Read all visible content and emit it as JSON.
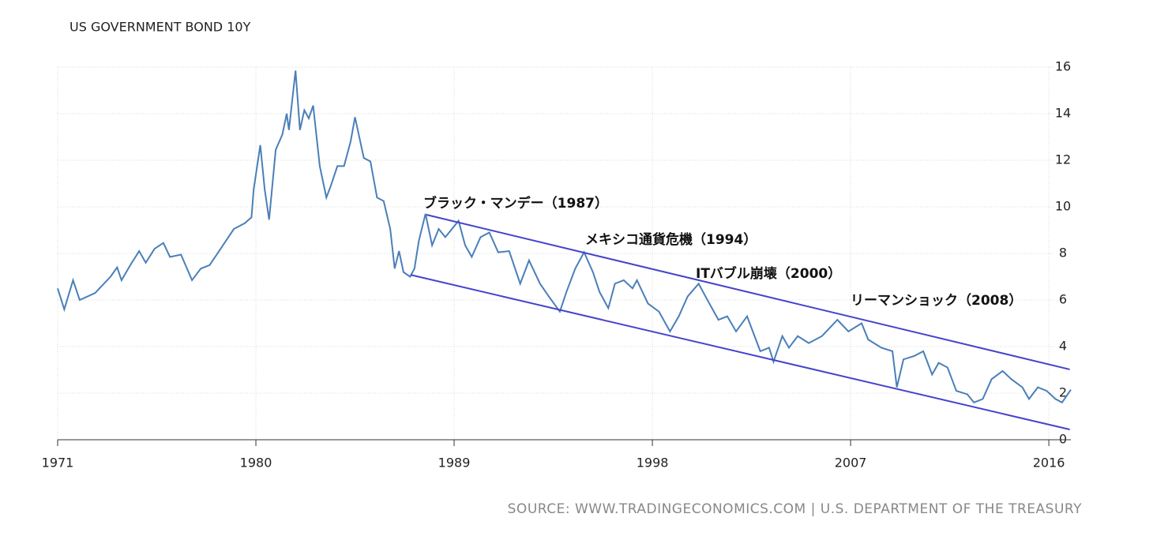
{
  "chart_data": {
    "type": "line",
    "title": "US GOVERNMENT BOND 10Y",
    "source": "SOURCE: WWW.TRADINGECONOMICS.COM | U.S. DEPARTMENT OF THE TREASURY",
    "x": [
      1971.0,
      1971.3,
      1971.7,
      1972.0,
      1972.7,
      1973.4,
      1973.7,
      1973.9,
      1974.3,
      1974.7,
      1975.0,
      1975.4,
      1975.8,
      1976.1,
      1976.6,
      1977.1,
      1977.5,
      1977.9,
      1978.4,
      1979.0,
      1979.5,
      1979.8,
      1979.9,
      1980.2,
      1980.4,
      1980.6,
      1980.9,
      1981.2,
      1981.4,
      1981.5,
      1981.8,
      1982.0,
      1982.2,
      1982.4,
      1982.6,
      1982.9,
      1983.2,
      1983.4,
      1983.7,
      1984.0,
      1984.3,
      1984.5,
      1984.9,
      1985.2,
      1985.5,
      1985.8,
      1986.1,
      1986.3,
      1986.5,
      1986.7,
      1987.0,
      1987.2,
      1987.4,
      1987.7,
      1988.0,
      1988.3,
      1988.6,
      1989.2,
      1989.5,
      1989.8,
      1990.2,
      1990.6,
      1991.0,
      1991.5,
      1992.0,
      1992.4,
      1992.9,
      1993.3,
      1993.8,
      1994.1,
      1994.5,
      1994.9,
      1995.3,
      1995.6,
      1996.0,
      1996.3,
      1996.7,
      1997.1,
      1997.3,
      1997.8,
      1998.3,
      1998.8,
      1999.2,
      1999.6,
      2000.1,
      2000.5,
      2001.0,
      2001.4,
      2001.8,
      2002.3,
      2002.9,
      2003.3,
      2003.5,
      2003.9,
      2004.2,
      2004.6,
      2005.1,
      2005.7,
      2006.4,
      2006.9,
      2007.5,
      2007.8,
      2008.4,
      2008.9,
      2009.1,
      2009.4,
      2009.9,
      2010.3,
      2010.7,
      2011.0,
      2011.4,
      2011.8,
      2012.3,
      2012.6,
      2013.0,
      2013.4,
      2013.9,
      2014.3,
      2014.8,
      2015.1,
      2015.5,
      2015.9,
      2016.3,
      2016.6,
      2017.0
    ],
    "series": [
      {
        "color": "#4a7fb8",
        "values": [
          6.5,
          5.6,
          6.85,
          6.0,
          6.3,
          7.0,
          7.4,
          6.85,
          7.5,
          8.1,
          7.6,
          8.2,
          8.45,
          7.85,
          7.95,
          6.85,
          7.35,
          7.5,
          8.2,
          9.05,
          9.3,
          9.55,
          10.75,
          12.65,
          10.75,
          9.45,
          12.45,
          13.1,
          14.0,
          13.3,
          15.85,
          13.3,
          14.15,
          13.8,
          14.35,
          11.75,
          10.4,
          10.9,
          11.75,
          11.75,
          12.8,
          13.85,
          12.1,
          11.95,
          10.4,
          10.25,
          9.05,
          7.35,
          8.1,
          7.2,
          7.0,
          7.35,
          8.55,
          9.7,
          8.35,
          9.05,
          8.7,
          9.4,
          8.35,
          7.85,
          8.7,
          8.9,
          8.05,
          8.1,
          6.7,
          7.7,
          6.7,
          6.15,
          5.5,
          6.35,
          7.35,
          8.05,
          7.2,
          6.35,
          5.65,
          6.7,
          6.85,
          6.5,
          6.85,
          5.85,
          5.5,
          4.65,
          5.3,
          6.15,
          6.7,
          6.0,
          5.15,
          5.3,
          4.65,
          5.3,
          3.8,
          3.95,
          3.35,
          4.45,
          3.95,
          4.45,
          4.15,
          4.45,
          5.15,
          4.65,
          5.0,
          4.3,
          3.95,
          3.8,
          2.25,
          3.45,
          3.6,
          3.8,
          2.8,
          3.3,
          3.1,
          2.1,
          1.95,
          1.6,
          1.75,
          2.6,
          2.95,
          2.6,
          2.25,
          1.75,
          2.25,
          2.1,
          1.75,
          1.6,
          2.15
        ]
      }
    ],
    "trend_lines": [
      {
        "color": "#4444cc",
        "x": [
          1987.74,
          2016.95
        ],
        "y": [
          9.66,
          3.02
        ]
      },
      {
        "color": "#4444cc",
        "x": [
          1987.02,
          2016.95
        ],
        "y": [
          7.08,
          0.44
        ]
      }
    ],
    "annotations": [
      "ブラック・マンデー（1987）",
      "メキシコ通貨危機（1994）",
      "ITバブル崩壊（2000）",
      "リーマンショック（2008）"
    ],
    "xlim": [
      1971,
      2017
    ],
    "xticks": [
      1971,
      1980,
      1989,
      1998,
      2007,
      2016
    ],
    "ylim": [
      0,
      16
    ],
    "yticks": [
      0,
      2,
      4,
      6,
      8,
      10,
      12,
      14,
      16
    ],
    "grid": true
  }
}
